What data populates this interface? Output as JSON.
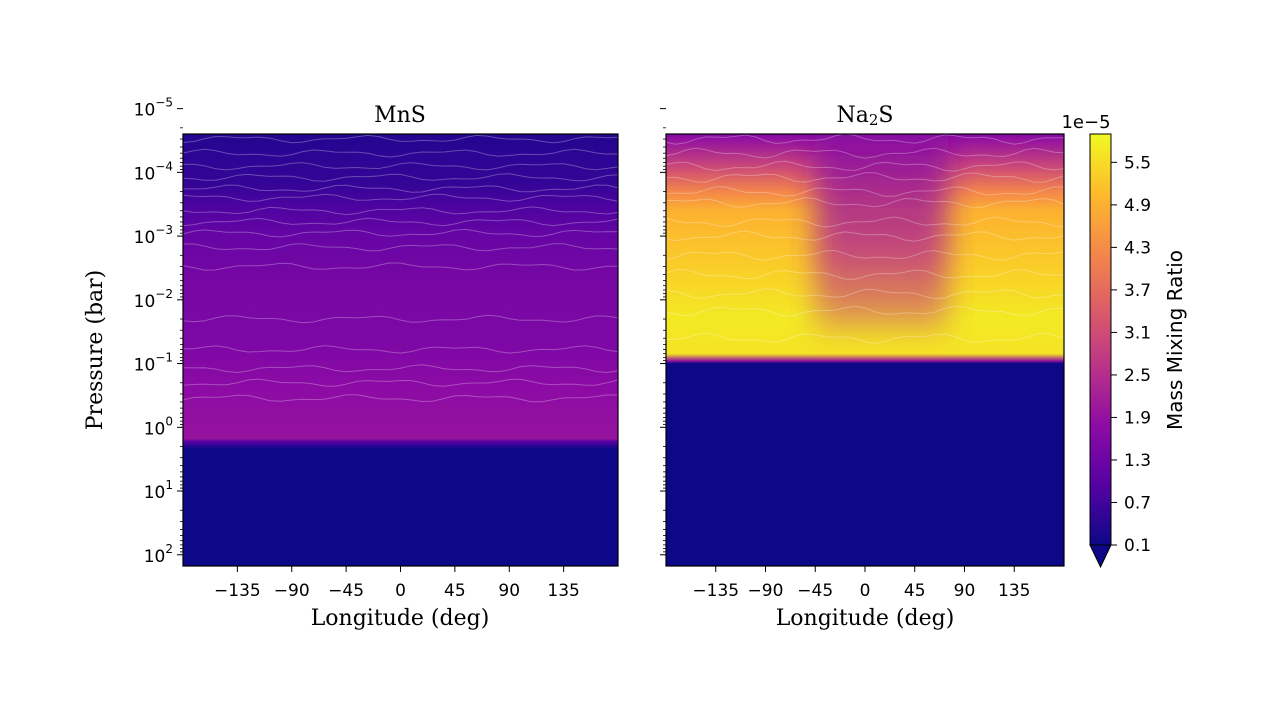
{
  "figure": {
    "ylabel": "Pressure (bar)",
    "colorbar": {
      "label": "Mass Mixing Ratio",
      "exponent_label": "1e−5",
      "ticks": [
        "0.1",
        "0.7",
        "1.3",
        "1.9",
        "2.5",
        "3.1",
        "3.7",
        "4.3",
        "4.9",
        "5.5"
      ],
      "colormap": "plasma",
      "extend": "min"
    }
  },
  "chart_data": [
    {
      "type": "heatmap",
      "title": "MnS",
      "xlabel": "Longitude (deg)",
      "ylabel": "Pressure (bar)",
      "x_ticks": [
        -135,
        -90,
        -45,
        0,
        45,
        90,
        135
      ],
      "x_tick_labels": [
        "−135",
        "−90",
        "−45",
        "0",
        "45",
        "90",
        "135"
      ],
      "xlim": [
        -180,
        180
      ],
      "y_scale": "log",
      "y_inverted": true,
      "ylim": [
        2.5e-05,
        150
      ],
      "y_ticks": [
        1e-05,
        0.0001,
        0.001,
        0.01,
        0.1,
        1,
        10,
        100
      ],
      "y_tick_labels": [
        {
          "base": "10",
          "exp": "−5"
        },
        {
          "base": "10",
          "exp": "−4"
        },
        {
          "base": "10",
          "exp": "−3"
        },
        {
          "base": "10",
          "exp": "−2"
        },
        {
          "base": "10",
          "exp": "−1"
        },
        {
          "base": "10",
          "exp": "0"
        },
        {
          "base": "10",
          "exp": "1"
        },
        {
          "base": "10",
          "exp": "2"
        }
      ],
      "profile_unit": "1e-5",
      "profile": [
        {
          "p": 2.5e-05,
          "v": 0.35
        },
        {
          "p": 5e-05,
          "v": 0.45
        },
        {
          "p": 0.00015,
          "v": 0.55
        },
        {
          "p": 0.0003,
          "v": 0.8
        },
        {
          "p": 0.001,
          "v": 1.2
        },
        {
          "p": 0.005,
          "v": 1.45
        },
        {
          "p": 0.05,
          "v": 1.55
        },
        {
          "p": 0.2,
          "v": 1.75
        },
        {
          "p": 1.5,
          "v": 1.95
        },
        {
          "p": 1.7,
          "v": 0.9
        },
        {
          "p": 2.2,
          "v": 0.1
        },
        {
          "p": 150,
          "v": 0.1
        }
      ]
    },
    {
      "type": "heatmap",
      "title": "Na₂S",
      "title_main": "Na",
      "title_sub": "2",
      "title_tail": "S",
      "xlabel": "Longitude (deg)",
      "x_ticks": [
        -135,
        -90,
        -45,
        0,
        45,
        90,
        135
      ],
      "x_tick_labels": [
        "−135",
        "−90",
        "−45",
        "0",
        "45",
        "90",
        "135"
      ],
      "xlim": [
        -180,
        180
      ],
      "y_scale": "log",
      "y_inverted": true,
      "ylim": [
        2.5e-05,
        150
      ],
      "profile_unit": "1e-5",
      "profile": [
        {
          "p": 2.5e-05,
          "v": 1.6
        },
        {
          "p": 3e-05,
          "v": 1.9
        },
        {
          "p": 8e-05,
          "v": 3.0
        },
        {
          "p": 0.0002,
          "v": 4.2
        },
        {
          "p": 0.0004,
          "v": 4.9
        },
        {
          "p": 0.003,
          "v": 5.3
        },
        {
          "p": 0.02,
          "v": 5.7
        },
        {
          "p": 0.07,
          "v": 5.6
        },
        {
          "p": 0.09,
          "v": 2.0
        },
        {
          "p": 0.1,
          "v": 0.1
        },
        {
          "p": 150,
          "v": 0.1
        }
      ],
      "low_band": {
        "x_from": -45,
        "x_to": 75,
        "p_from": 3e-05,
        "p_to": 0.03,
        "v": 2.6
      }
    }
  ]
}
